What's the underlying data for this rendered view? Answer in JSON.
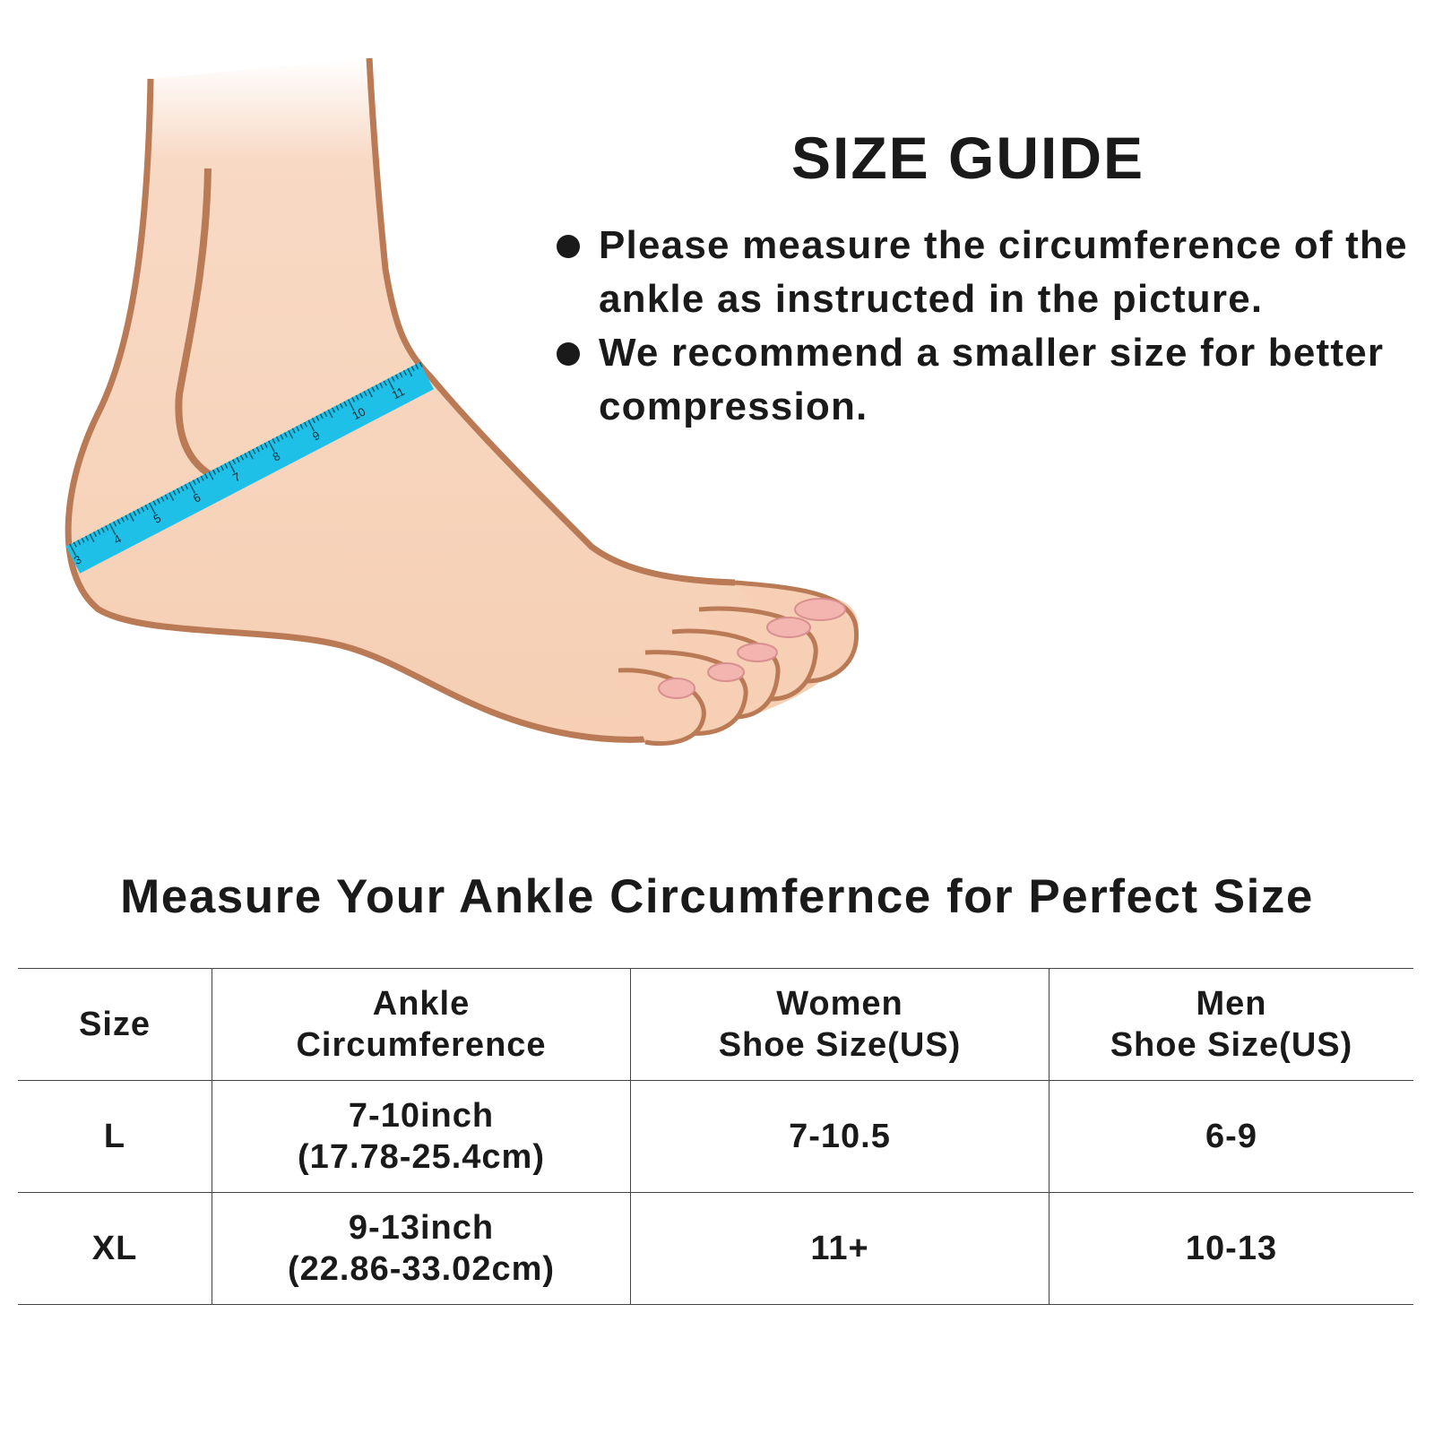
{
  "title": "SIZE GUIDE",
  "bullets": [
    "Please measure the circumference of the ankle as instructed in the picture.",
    "We recommend a smaller size for better compression."
  ],
  "illustration": {
    "tape_numbers": [
      "3",
      "4",
      "5",
      "6",
      "7",
      "8",
      "9",
      "10",
      "11"
    ],
    "tape_color": "#1ec0e8",
    "skin_color": "#f6cfb4",
    "outline_color": "#b97a55"
  },
  "subtitle": "Measure Your Ankle Circumfernce for Perfect Size",
  "table": {
    "headers": [
      [
        "Size"
      ],
      [
        "Ankle",
        "Circumference"
      ],
      [
        "Women",
        "Shoe Size(US)"
      ],
      [
        "Men",
        "Shoe Size(US)"
      ]
    ],
    "rows": [
      {
        "size": "L",
        "ankle": [
          "7-10inch",
          "(17.78-25.4cm)"
        ],
        "women": "7-10.5",
        "men": "6-9"
      },
      {
        "size": "XL",
        "ankle": [
          "9-13inch",
          "(22.86-33.02cm)"
        ],
        "women": "11+",
        "men": "10-13"
      }
    ]
  }
}
